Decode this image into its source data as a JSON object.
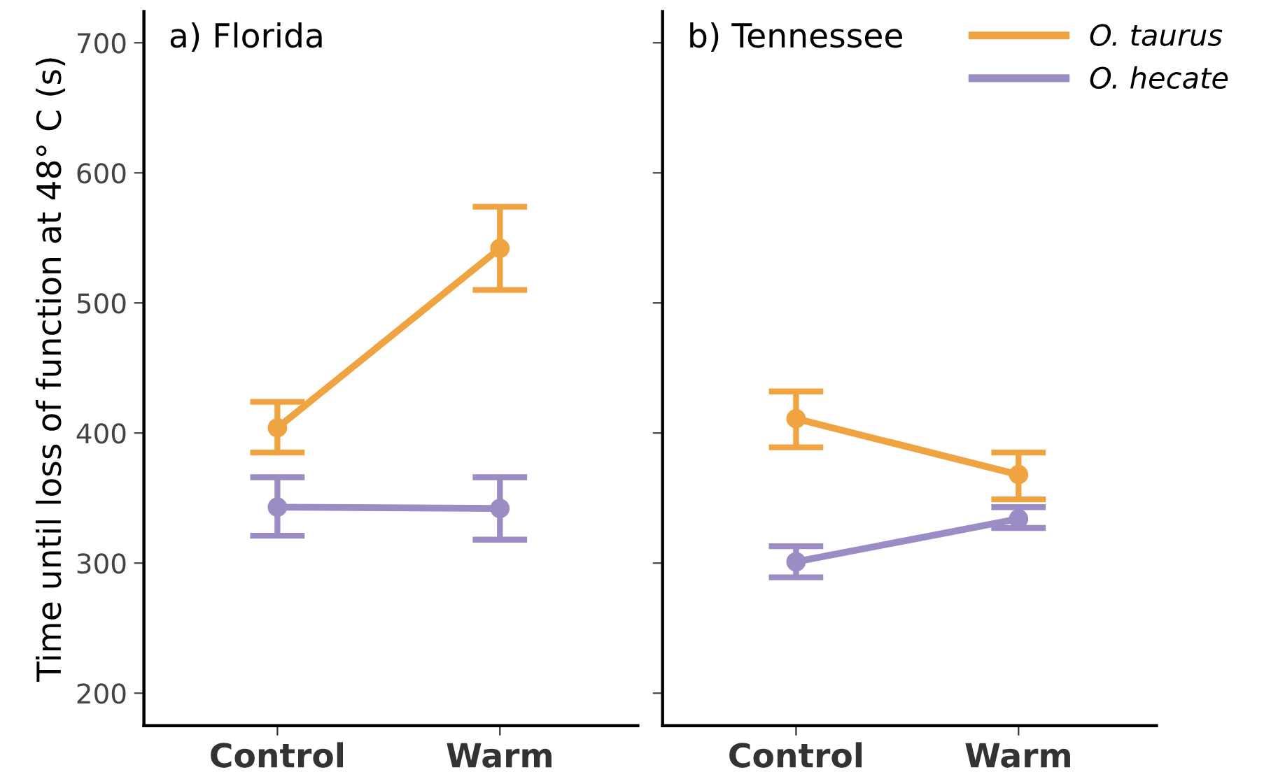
{
  "chart_data": [
    {
      "type": "line",
      "title": "a) Florida",
      "ylabel": "Time until loss of function at 48° C (s)",
      "categories": [
        "Control",
        "Warm"
      ],
      "ylim": [
        175,
        724
      ],
      "yticks": [
        200,
        300,
        400,
        500,
        600,
        700
      ],
      "grid": false,
      "legend": false,
      "marker": "circle",
      "line_style": "solid",
      "series": [
        {
          "color": "#f0a441",
          "values": [
            404,
            542
          ],
          "errors": [
            [
              385,
              424
            ],
            [
              510,
              574
            ]
          ]
        },
        {
          "color": "#9b8dc4",
          "values": [
            343,
            342
          ],
          "errors": [
            [
              321,
              366
            ],
            [
              318,
              366
            ]
          ]
        }
      ]
    },
    {
      "type": "line",
      "title": "b) Tennessee",
      "categories": [
        "Control",
        "Warm"
      ],
      "ylim": [
        175,
        724
      ],
      "yticks": [
        200,
        300,
        400,
        500,
        600,
        700
      ],
      "grid": false,
      "legend": "top right",
      "tick_labels": "x",
      "marker": "circle",
      "line_style": "solid",
      "series": [
        {
          "name": "O. taurus",
          "color": "#f0a441",
          "values": [
            411,
            368
          ],
          "errors": [
            [
              389,
              432
            ],
            [
              349,
              385
            ]
          ]
        },
        {
          "name": "O. hecate",
          "color": "#9b8dc4",
          "values": [
            301,
            334
          ],
          "errors": [
            [
              289,
              313
            ],
            [
              327,
              343
            ]
          ]
        }
      ]
    }
  ]
}
